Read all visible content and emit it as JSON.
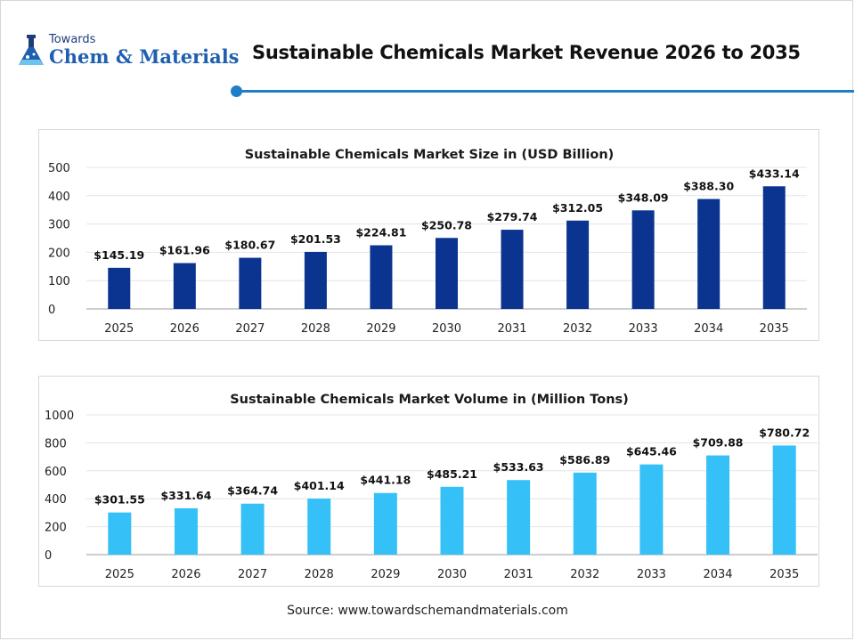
{
  "brand": {
    "small": "Towards",
    "name": "Chem & Materials",
    "logo_icon": "flask-icon",
    "color": "#1f5fb0"
  },
  "header": {
    "title": "Sustainable Chemicals Market Revenue 2026 to 2035",
    "accent": "#1f7fc6"
  },
  "chart_data": [
    {
      "type": "bar",
      "title": "Sustainable Chemicals Market Size in (USD Billion)",
      "categories": [
        "2025",
        "2026",
        "2027",
        "2028",
        "2029",
        "2030",
        "2031",
        "2032",
        "2033",
        "2034",
        "2035"
      ],
      "values": [
        145.19,
        161.96,
        180.67,
        201.53,
        224.81,
        250.78,
        279.74,
        312.05,
        348.09,
        388.3,
        433.14
      ],
      "labels": [
        "$145.19",
        "$161.96",
        "$180.67",
        "$201.53",
        "$224.81",
        "$250.78",
        "$279.74",
        "$312.05",
        "$348.09",
        "$388.30",
        "$433.14"
      ],
      "yticks": [
        "0",
        "100",
        "200",
        "300",
        "400",
        "500"
      ],
      "ylim": [
        0,
        500
      ],
      "color": "#0a3490",
      "grid": true
    },
    {
      "type": "bar",
      "title": "Sustainable Chemicals Market Volume in (Million Tons)",
      "categories": [
        "2025",
        "2026",
        "2027",
        "2028",
        "2029",
        "2030",
        "2031",
        "2032",
        "2033",
        "2034",
        "2035"
      ],
      "values": [
        301.55,
        331.64,
        364.74,
        401.14,
        441.18,
        485.21,
        533.63,
        586.89,
        645.46,
        709.88,
        780.72
      ],
      "labels": [
        "$301.55",
        "$331.64",
        "$364.74",
        "$401.14",
        "$441.18",
        "$485.21",
        "$533.63",
        "$586.89",
        "$645.46",
        "$709.88",
        "$780.72"
      ],
      "yticks": [
        "0",
        "200",
        "400",
        "600",
        "800",
        "1000"
      ],
      "ylim": [
        0,
        1000
      ],
      "color": "#35c1f8",
      "grid": true
    }
  ],
  "footer": {
    "source": "Source: www.towardschemandmaterials.com"
  }
}
